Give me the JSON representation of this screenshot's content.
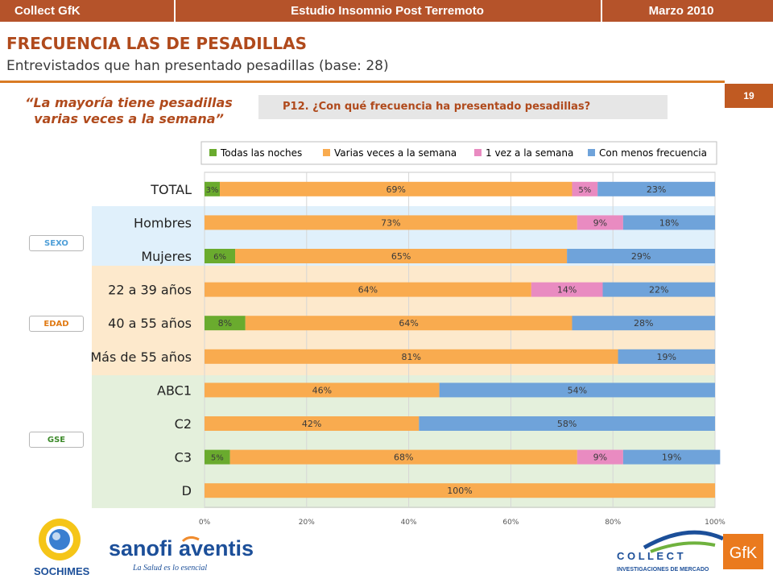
{
  "header": {
    "left": "Collect GfK",
    "center": "Estudio Insomnio Post Terremoto",
    "right": "Marzo 2010"
  },
  "title": "FRECUENCIA LAS DE PESADILLAS",
  "subtitle": "Entrevistados que han presentado pesadillas (base: 28)",
  "page_number": "19",
  "quote": "“La mayoría tiene pesadillas varias veces a la semana”",
  "question": "P12. ¿Con qué frecuencia ha presentado pesadillas?",
  "segments": {
    "sexo": "SEXO",
    "edad": "EDAD",
    "gse": "GSE"
  },
  "logos": {
    "sochimes": "SOCHIMES",
    "sanofi": "sanofi aventis",
    "sanofi_tag": "La Salud es lo esencial",
    "collect": "C O L L E C T",
    "collect_sub": "INVESTIGACIONES DE MERCADO",
    "gfk": "GfK"
  },
  "colors": {
    "brand": "#b5532a",
    "green": "#6aab2e",
    "orange": "#f9ab4f",
    "pink": "#e98bc1",
    "blue": "#6fa3da",
    "band_sexo": "#e0f0fb",
    "band_edad": "#fde9cc",
    "band_gse": "#e4f0dc",
    "sexo_text": "#4f9fd8",
    "edad_text": "#e07a14",
    "gse_text": "#3c8a2a"
  },
  "chart_data": {
    "type": "bar",
    "orientation": "horizontal",
    "stacked": true,
    "categories": [
      "TOTAL",
      "Hombres",
      "Mujeres",
      "22 a 39 años",
      "40 a 55 años",
      "Más de 55 años",
      "ABC1",
      "C2",
      "C3",
      "D"
    ],
    "series": [
      {
        "name": "Todas las noches",
        "values": [
          3,
          0,
          6,
          0,
          8,
          0,
          0,
          0,
          5,
          0
        ]
      },
      {
        "name": "Varias veces a la semana",
        "values": [
          69,
          73,
          65,
          64,
          64,
          81,
          46,
          42,
          68,
          100
        ]
      },
      {
        "name": "1 vez a la semana",
        "values": [
          5,
          9,
          0,
          14,
          0,
          0,
          0,
          0,
          9,
          0
        ]
      },
      {
        "name": "Con menos frecuencia",
        "values": [
          23,
          18,
          29,
          22,
          28,
          19,
          54,
          58,
          19,
          0
        ]
      }
    ],
    "labels": [
      [
        "3%",
        "69%",
        "5%",
        "23%"
      ],
      [
        "",
        "73%",
        "9%",
        "18%"
      ],
      [
        "6%",
        "65%",
        "",
        "29%"
      ],
      [
        "",
        "64%",
        "14%",
        "22%"
      ],
      [
        "8%",
        "64%",
        "",
        "28%"
      ],
      [
        "",
        "81%",
        "",
        "19%"
      ],
      [
        "",
        "46%",
        "",
        "54%"
      ],
      [
        "",
        "42%",
        "",
        "58%"
      ],
      [
        "5%",
        "68%",
        "9%",
        "19%"
      ],
      [
        "",
        "100%",
        "",
        ""
      ]
    ],
    "xticks": [
      "0%",
      "20%",
      "40%",
      "60%",
      "80%",
      "100%"
    ],
    "xlim": [
      0,
      100
    ],
    "grid": true,
    "legend": "top"
  }
}
